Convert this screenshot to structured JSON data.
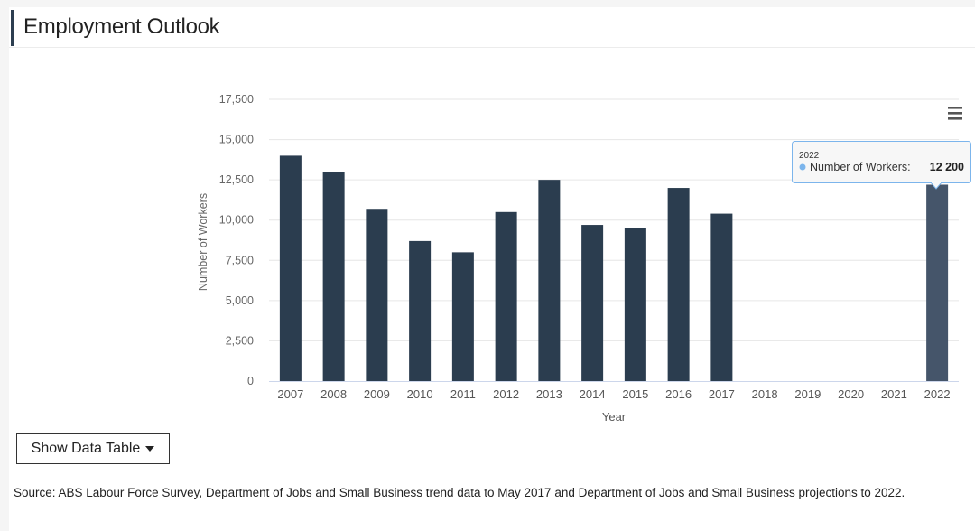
{
  "page": {
    "title": "Employment Outlook",
    "show_table_label": "Show Data Table",
    "source": "Source: ABS Labour Force Survey, Department of Jobs and Small Business trend data to May 2017 and Department of Jobs and Small Business projections to 2022."
  },
  "chart_data": {
    "type": "bar",
    "title": "",
    "xlabel": "Year",
    "ylabel": "Number of Workers",
    "categories": [
      "2007",
      "2008",
      "2009",
      "2010",
      "2011",
      "2012",
      "2013",
      "2014",
      "2015",
      "2016",
      "2017",
      "2018",
      "2019",
      "2020",
      "2021",
      "2022"
    ],
    "values": [
      14000,
      13000,
      10700,
      8700,
      8000,
      10500,
      12500,
      9700,
      9500,
      12000,
      10400,
      null,
      null,
      null,
      null,
      12200
    ],
    "ylim": [
      0,
      17500
    ],
    "yticks": [
      0,
      2500,
      5000,
      7500,
      10000,
      12500,
      15000,
      17500
    ],
    "ytick_labels": [
      "0",
      "2,500",
      "5,000",
      "7,500",
      "10,000",
      "12,500",
      "15,000",
      "17,500"
    ],
    "bar_color": "#2b3d4f",
    "highlight_color": "#45556a",
    "highlight_index": 15,
    "tooltip": {
      "year": "2022",
      "label": "Number of Workers:",
      "value": "12 200",
      "dot_color": "#7cb5ec"
    },
    "menu_icon": "hamburger-menu-icon"
  }
}
